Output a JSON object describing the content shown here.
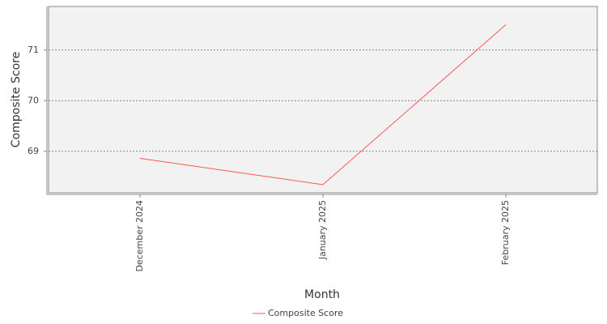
{
  "chart_data": {
    "type": "line",
    "x_label": "Month",
    "y_label": "Composite Score",
    "categories": [
      "December 2024",
      "January 2025",
      "February 2025"
    ],
    "series": [
      {
        "name": "Composite Score",
        "color": "#ff5555",
        "values": [
          68.86,
          68.34,
          71.5
        ]
      }
    ],
    "ylim": [
      68.18,
      71.86
    ],
    "yticks": [
      69,
      70,
      71
    ],
    "grid": true,
    "legend": "bottom"
  }
}
